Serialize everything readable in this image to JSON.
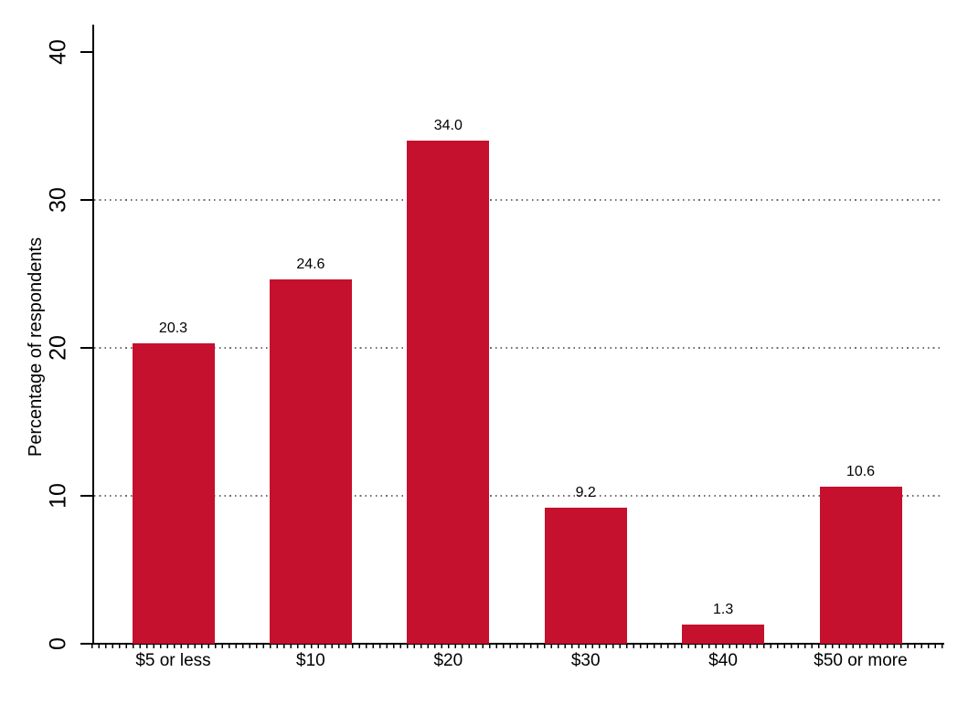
{
  "chart_data": {
    "type": "bar",
    "title": "",
    "xlabel": "",
    "ylabel": "Percentage of respondents",
    "categories": [
      "$5 or less",
      "$10",
      "$20",
      "$30",
      "$40",
      "$50 or more"
    ],
    "values": [
      20.3,
      24.6,
      34.0,
      9.2,
      1.3,
      10.6
    ],
    "value_labels": [
      "20.3",
      "24.6",
      "34.0",
      "9.2",
      "1.3",
      "10.6"
    ],
    "ylim": [
      0,
      40
    ],
    "yticks": [
      0,
      10,
      20,
      30,
      40
    ],
    "ytick_labels": [
      "0",
      "10",
      "20",
      "30",
      "40"
    ],
    "gridlines_at": [
      10,
      20,
      30
    ],
    "gridline_style": "dotted",
    "legend": "none",
    "colors": {
      "bar": "#C5102E",
      "axis": "#000000",
      "gridline": "#6e6e6e",
      "text": "#000000",
      "background": "#ffffff"
    }
  }
}
